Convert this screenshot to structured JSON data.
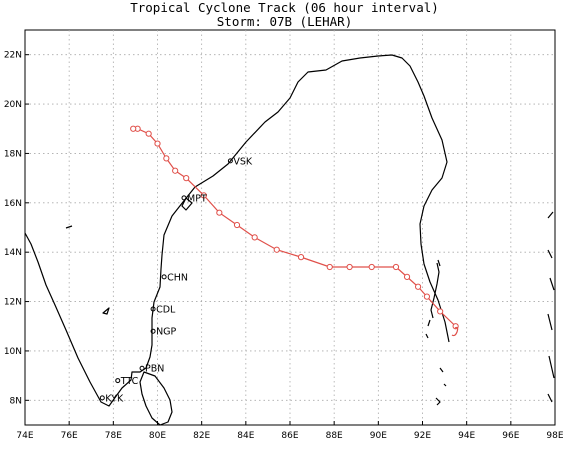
{
  "title": {
    "line1": "Tropical Cyclone Track (06 hour interval)",
    "line2": "Storm: 07B (LEHAR)"
  },
  "map": {
    "lon_range": [
      74,
      98
    ],
    "lat_range": [
      7,
      23
    ],
    "lon_ticks": [
      "74E",
      "76E",
      "78E",
      "80E",
      "82E",
      "84E",
      "86E",
      "88E",
      "90E",
      "92E",
      "94E",
      "96E",
      "98E"
    ],
    "lat_ticks": [
      "8N",
      "10N",
      "12N",
      "14N",
      "16N",
      "18N",
      "20N",
      "22N"
    ],
    "grid": "dotted",
    "track_color": "#e0504a"
  },
  "cities": [
    {
      "name": "VSK",
      "lon": 83.3,
      "lat": 17.7
    },
    {
      "name": "MPT",
      "lon": 81.2,
      "lat": 16.2
    },
    {
      "name": "CHN",
      "lon": 80.3,
      "lat": 13.0
    },
    {
      "name": "CDL",
      "lon": 79.8,
      "lat": 11.7
    },
    {
      "name": "NGP",
      "lon": 79.8,
      "lat": 10.8
    },
    {
      "name": "PBN",
      "lon": 79.3,
      "lat": 9.3
    },
    {
      "name": "TTC",
      "lon": 78.2,
      "lat": 8.8
    },
    {
      "name": "KYK",
      "lon": 77.5,
      "lat": 8.1
    }
  ],
  "track": [
    {
      "lon": 93.5,
      "lat": 11.0
    },
    {
      "lon": 92.8,
      "lat": 11.6
    },
    {
      "lon": 92.2,
      "lat": 12.2
    },
    {
      "lon": 91.8,
      "lat": 12.6
    },
    {
      "lon": 91.3,
      "lat": 13.0
    },
    {
      "lon": 90.8,
      "lat": 13.4
    },
    {
      "lon": 89.7,
      "lat": 13.4
    },
    {
      "lon": 88.7,
      "lat": 13.4
    },
    {
      "lon": 87.8,
      "lat": 13.4
    },
    {
      "lon": 86.5,
      "lat": 13.8
    },
    {
      "lon": 85.4,
      "lat": 14.1
    },
    {
      "lon": 84.4,
      "lat": 14.6
    },
    {
      "lon": 83.6,
      "lat": 15.1
    },
    {
      "lon": 82.8,
      "lat": 15.6
    },
    {
      "lon": 82.1,
      "lat": 16.3
    },
    {
      "lon": 81.3,
      "lat": 17.0
    },
    {
      "lon": 80.8,
      "lat": 17.3
    },
    {
      "lon": 80.4,
      "lat": 17.8
    },
    {
      "lon": 80.0,
      "lat": 18.4
    },
    {
      "lon": 79.6,
      "lat": 18.8
    },
    {
      "lon": 79.1,
      "lat": 19.0
    },
    {
      "lon": 78.9,
      "lat": 19.0
    }
  ]
}
